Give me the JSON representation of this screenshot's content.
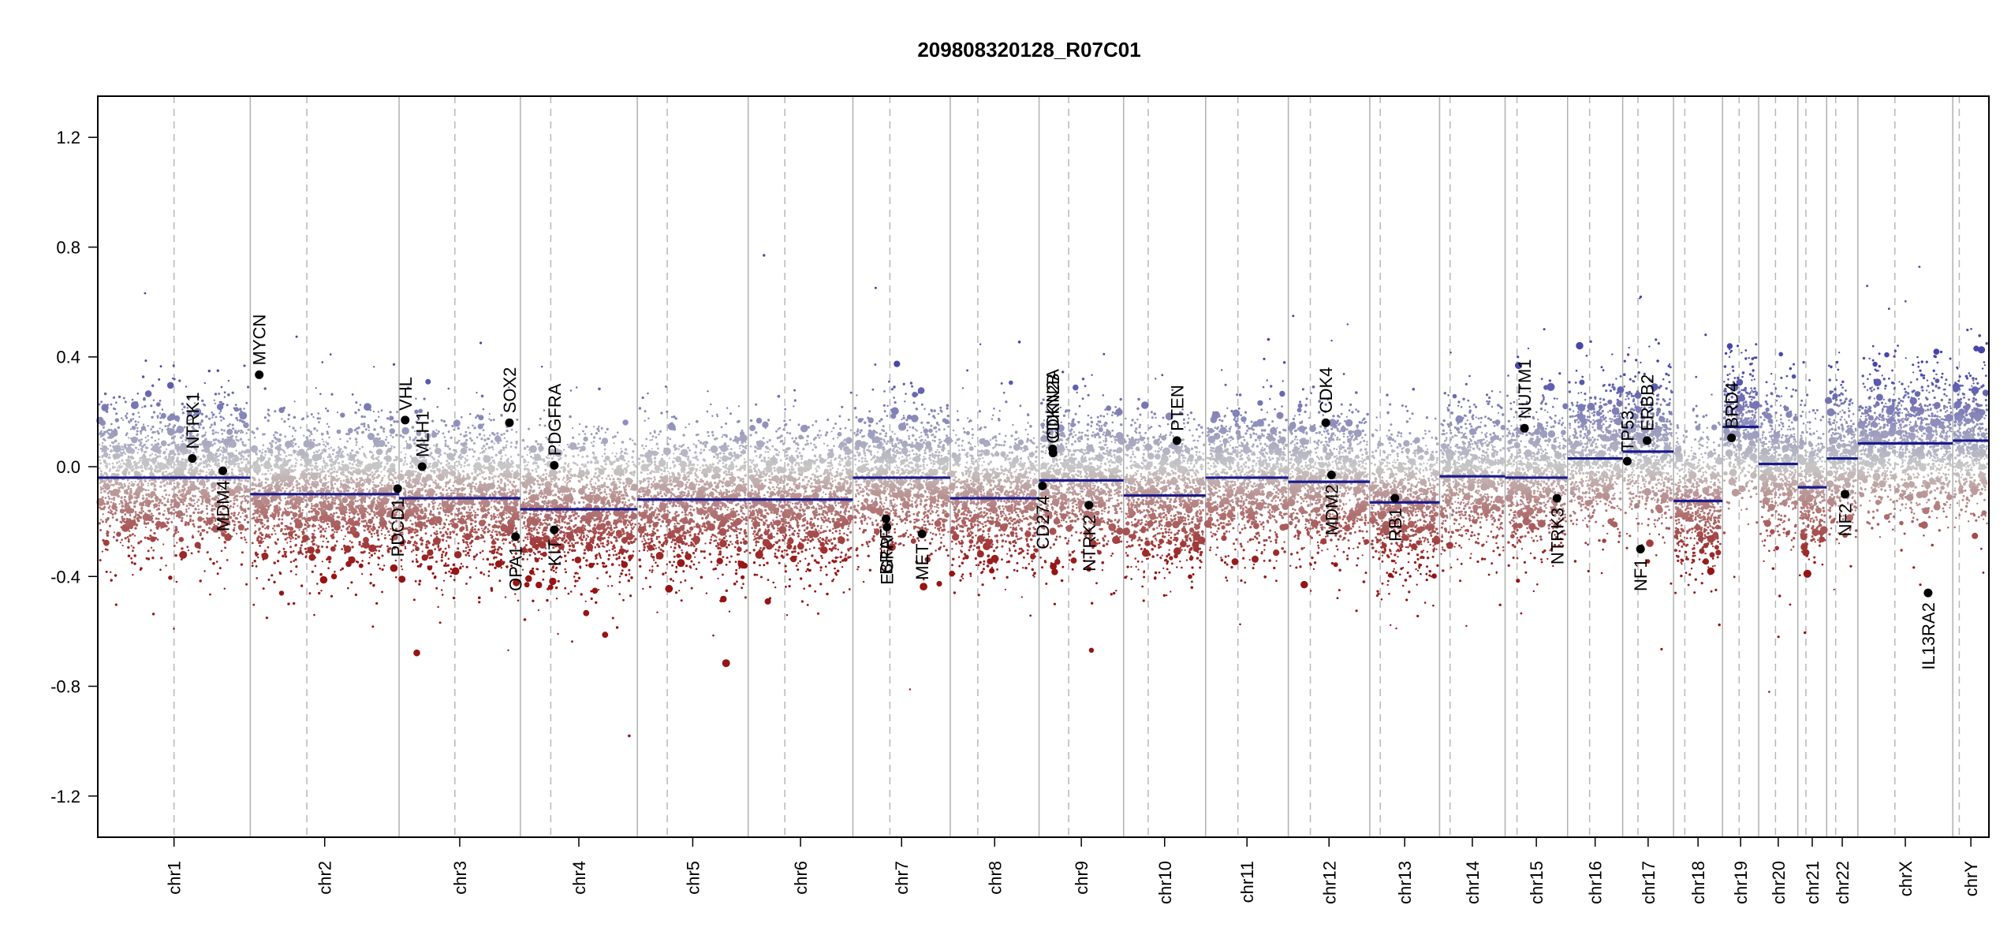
{
  "chart_data": {
    "type": "scatter",
    "title": "209808320128_R07C01",
    "xlabel": "",
    "ylabel": "",
    "ylim": [
      -1.35,
      1.35
    ],
    "yticks": [
      {
        "value": 1.2,
        "label": "1.2"
      },
      {
        "value": 0.8,
        "label": "0.8"
      },
      {
        "value": 0.4,
        "label": "0.4"
      },
      {
        "value": 0.0,
        "label": "0.0"
      },
      {
        "value": -0.4,
        "label": "-0.4"
      },
      {
        "value": -0.8,
        "label": "-0.8"
      },
      {
        "value": -1.2,
        "label": "-1.2"
      }
    ],
    "chromosomes": [
      {
        "name": "chr1",
        "length": 249,
        "centromere": 0.5,
        "segment": -0.04
      },
      {
        "name": "chr2",
        "length": 243,
        "centromere": 0.38,
        "segment": -0.1
      },
      {
        "name": "chr3",
        "length": 198,
        "centromere": 0.46,
        "segment": -0.115
      },
      {
        "name": "chr4",
        "length": 191,
        "centromere": 0.26,
        "segment": -0.155
      },
      {
        "name": "chr5",
        "length": 181,
        "centromere": 0.27,
        "segment": -0.12
      },
      {
        "name": "chr6",
        "length": 171,
        "centromere": 0.35,
        "segment": -0.12
      },
      {
        "name": "chr7",
        "length": 159,
        "centromere": 0.38,
        "segment": -0.04
      },
      {
        "name": "chr8",
        "length": 145,
        "centromere": 0.31,
        "segment": -0.115
      },
      {
        "name": "chr9",
        "length": 138,
        "centromere": 0.35,
        "segment": -0.05
      },
      {
        "name": "chr10",
        "length": 134,
        "centromere": 0.3,
        "segment": -0.105
      },
      {
        "name": "chr11",
        "length": 135,
        "centromere": 0.39,
        "segment": -0.04
      },
      {
        "name": "chr12",
        "length": 133,
        "centromere": 0.27,
        "segment": -0.055
      },
      {
        "name": "chr13",
        "length": 114,
        "centromere": 0.15,
        "segment": -0.13
      },
      {
        "name": "chr14",
        "length": 107,
        "centromere": 0.16,
        "segment": -0.035
      },
      {
        "name": "chr15",
        "length": 102,
        "centromere": 0.19,
        "segment": -0.04
      },
      {
        "name": "chr16",
        "length": 90,
        "centromere": 0.4,
        "segment": 0.03
      },
      {
        "name": "chr17",
        "length": 83,
        "centromere": 0.3,
        "segment": 0.055
      },
      {
        "name": "chr18",
        "length": 80,
        "centromere": 0.23,
        "segment": -0.125
      },
      {
        "name": "chr19",
        "length": 59,
        "centromere": 0.46,
        "segment": 0.145
      },
      {
        "name": "chr20",
        "length": 64,
        "centromere": 0.43,
        "segment": 0.01
      },
      {
        "name": "chr21",
        "length": 47,
        "centromere": 0.28,
        "segment": -0.075
      },
      {
        "name": "chr22",
        "length": 51,
        "centromere": 0.29,
        "segment": 0.03
      },
      {
        "name": "chrX",
        "length": 155,
        "centromere": 0.39,
        "segment": 0.085
      },
      {
        "name": "chrY",
        "length": 59,
        "centromere": 0.18,
        "segment": 0.095
      }
    ],
    "genes": [
      {
        "name": "NTRK1",
        "chr": 0,
        "pos": 0.62,
        "value": 0.03,
        "label": "above"
      },
      {
        "name": "MDM4",
        "chr": 0,
        "pos": 0.82,
        "value": -0.015,
        "label": "below"
      },
      {
        "name": "MYCN",
        "chr": 1,
        "pos": 0.06,
        "value": 0.335,
        "label": "above"
      },
      {
        "name": "PDCD1",
        "chr": 1,
        "pos": 0.99,
        "value": -0.08,
        "label": "below"
      },
      {
        "name": "VHL",
        "chr": 2,
        "pos": 0.05,
        "value": 0.17,
        "label": "above"
      },
      {
        "name": "MLH1",
        "chr": 2,
        "pos": 0.19,
        "value": 0.0,
        "label": "above"
      },
      {
        "name": "SOX2",
        "chr": 2,
        "pos": 0.91,
        "value": 0.16,
        "label": "above"
      },
      {
        "name": "OPA1",
        "chr": 2,
        "pos": 0.96,
        "value": -0.255,
        "label": "below"
      },
      {
        "name": "PDGFRA",
        "chr": 3,
        "pos": 0.29,
        "value": 0.005,
        "label": "above"
      },
      {
        "name": "KIT",
        "chr": 3,
        "pos": 0.29,
        "value": -0.23,
        "label": "below"
      },
      {
        "name": "EGFR",
        "chr": 6,
        "pos": 0.35,
        "value": -0.22,
        "label": "below"
      },
      {
        "name": "BRAF",
        "chr": 6,
        "pos": 0.34,
        "value": -0.19,
        "label": "below"
      },
      {
        "name": "MET",
        "chr": 6,
        "pos": 0.71,
        "value": -0.245,
        "label": "below"
      },
      {
        "name": "CD274",
        "chr": 8,
        "pos": 0.04,
        "value": -0.07,
        "label": "below"
      },
      {
        "name": "CDKN2A",
        "chr": 8,
        "pos": 0.16,
        "value": 0.065,
        "label": "above"
      },
      {
        "name": "CDKN2B",
        "chr": 8,
        "pos": 0.165,
        "value": 0.05,
        "label": "above"
      },
      {
        "name": "NTRK2",
        "chr": 8,
        "pos": 0.59,
        "value": -0.14,
        "label": "below"
      },
      {
        "name": "PTEN",
        "chr": 9,
        "pos": 0.65,
        "value": 0.095,
        "label": "above"
      },
      {
        "name": "CDK4",
        "chr": 11,
        "pos": 0.46,
        "value": 0.16,
        "label": "above"
      },
      {
        "name": "MDM2",
        "chr": 11,
        "pos": 0.53,
        "value": -0.03,
        "label": "below"
      },
      {
        "name": "RB1",
        "chr": 12,
        "pos": 0.36,
        "value": -0.115,
        "label": "below"
      },
      {
        "name": "NUTM1",
        "chr": 14,
        "pos": 0.31,
        "value": 0.14,
        "label": "above"
      },
      {
        "name": "NTRK3",
        "chr": 14,
        "pos": 0.83,
        "value": -0.115,
        "label": "below"
      },
      {
        "name": "TP53",
        "chr": 16,
        "pos": 0.09,
        "value": 0.02,
        "label": "above"
      },
      {
        "name": "NF1",
        "chr": 16,
        "pos": 0.35,
        "value": -0.3,
        "label": "below"
      },
      {
        "name": "ERBB2",
        "chr": 16,
        "pos": 0.48,
        "value": 0.095,
        "label": "above"
      },
      {
        "name": "BRD4",
        "chr": 18,
        "pos": 0.25,
        "value": 0.105,
        "label": "above"
      },
      {
        "name": "NF2",
        "chr": 21,
        "pos": 0.59,
        "value": -0.1,
        "label": "below"
      },
      {
        "name": "IL13RA2",
        "chr": 22,
        "pos": 0.74,
        "value": -0.46,
        "label": "below"
      }
    ]
  }
}
